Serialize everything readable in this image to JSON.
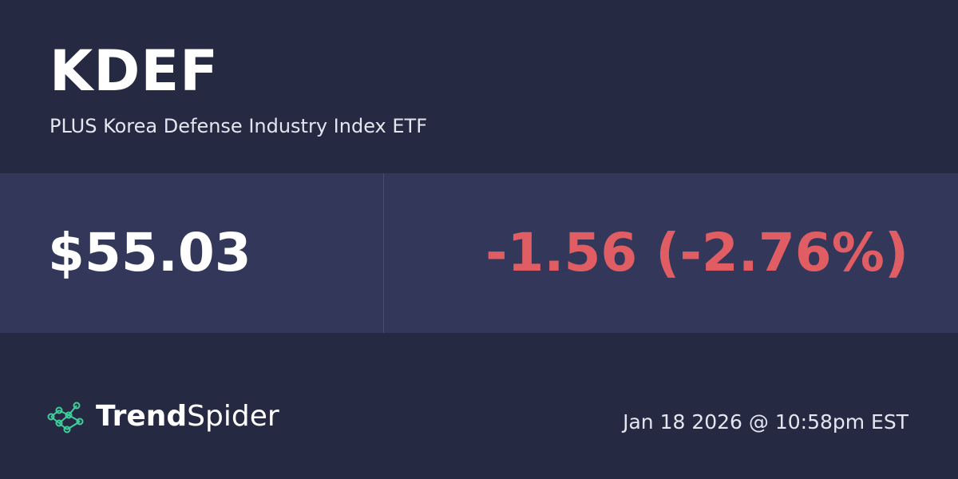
{
  "header": {
    "ticker": "KDEF",
    "name": "PLUS Korea Defense Industry Index ETF"
  },
  "quote": {
    "price": "$55.03",
    "change": "-1.56 (-2.76%)"
  },
  "footer": {
    "brand_bold": "Trend",
    "brand_light": "Spider",
    "timestamp": "Jan 18 2026 @ 10:58pm EST"
  }
}
